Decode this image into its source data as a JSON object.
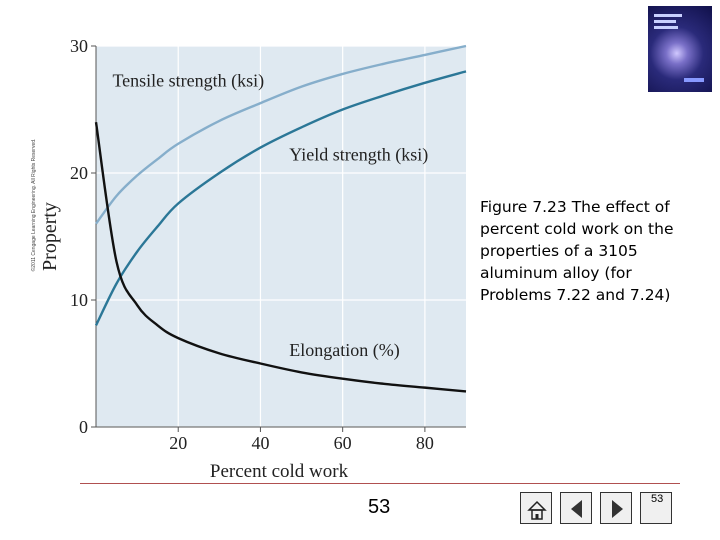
{
  "copyright": "©2011 Cengage Learning Engineering. All Rights Reserved.",
  "caption": "Figure 7.23 The effect of percent cold work on the properties of a 3105 aluminum alloy (for Problems 7.22 and 7.24)",
  "page_number": "53",
  "nav": {
    "page_label": "53"
  },
  "colors": {
    "plot_bg": "#dfe9f1",
    "tensile": "#86aecb",
    "yield": "#2b7797",
    "elongation": "#111111",
    "grid": "#ffffff"
  },
  "chart_data": {
    "type": "line",
    "title": "",
    "xlabel": "Percent cold work",
    "ylabel": "Property",
    "xlim": [
      0,
      90
    ],
    "ylim": [
      0,
      30
    ],
    "xticks": [
      20,
      40,
      60,
      80
    ],
    "xtick_labels": [
      "20",
      "40",
      "60",
      "80"
    ],
    "yticks": [
      0,
      10,
      20,
      30
    ],
    "ytick_labels": [
      "0",
      "10",
      "20",
      "30"
    ],
    "x": [
      0,
      5,
      10,
      15,
      20,
      30,
      40,
      50,
      60,
      70,
      80,
      90
    ],
    "series": [
      {
        "name": "Tensile strength (ksi)",
        "key": "tensile",
        "values": [
          16.0,
          18.2,
          19.8,
          21.1,
          22.3,
          24.1,
          25.5,
          26.8,
          27.8,
          28.6,
          29.3,
          30.0
        ]
      },
      {
        "name": "Yield strength (ksi)",
        "key": "yield",
        "values": [
          8.0,
          11.3,
          13.8,
          15.8,
          17.6,
          20.0,
          22.0,
          23.6,
          25.0,
          26.1,
          27.1,
          28.0
        ]
      },
      {
        "name": "Elongation (%)",
        "key": "elongation",
        "values": [
          24.0,
          13.0,
          9.6,
          8.0,
          7.0,
          5.8,
          5.0,
          4.3,
          3.8,
          3.4,
          3.1,
          2.8
        ]
      }
    ]
  }
}
